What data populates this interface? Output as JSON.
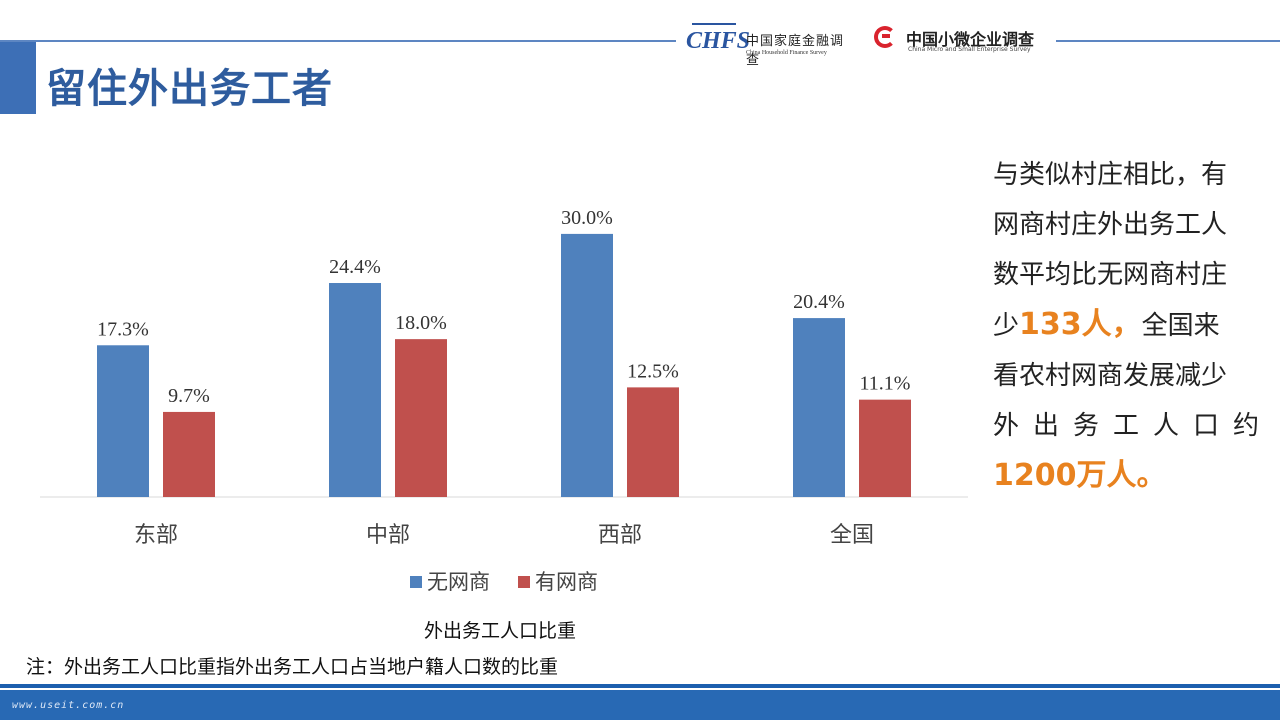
{
  "header": {
    "title": "留住外出务工者",
    "logos": [
      {
        "mark": "CHFS",
        "cn": "中国家庭金融调查",
        "en": "China Household Finance Survey"
      },
      {
        "cn": "中国小微企业调查",
        "en": "China Micro and Small Enterprise Survey"
      }
    ]
  },
  "chart_data": {
    "type": "bar",
    "categories": [
      "东部",
      "中部",
      "西部",
      "全国"
    ],
    "series": [
      {
        "name": "无网商",
        "values": [
          17.3,
          24.4,
          30.0,
          20.4
        ],
        "labels": [
          "17.3%",
          "24.4%",
          "30.0%",
          "20.4%"
        ],
        "color": "#4f81bd"
      },
      {
        "name": "有网商",
        "values": [
          9.7,
          18.0,
          12.5,
          11.1
        ],
        "labels": [
          "9.7%",
          "18.0%",
          "12.5%",
          "11.1%"
        ],
        "color": "#c0504d"
      }
    ],
    "xlabel": "外出务工人口比重",
    "ylim": [
      0,
      30
    ],
    "legend": "bottom",
    "grid": false
  },
  "note": "注：外出务工人口比重指外出务工人口占当地户籍人口数的比重",
  "side": {
    "l1": "与类似村庄相比，有",
    "l2": "网商村庄外出务工人",
    "l3": "数平均比无网商村庄",
    "l4_a": "少",
    "l4_hl": "133人，",
    "l4_b": "全国来",
    "l5": "看农村网商发展减少",
    "l6": "外出务工人口约",
    "l7": "1200万人。"
  },
  "footer": {
    "site": "www.useit.com.cn"
  }
}
